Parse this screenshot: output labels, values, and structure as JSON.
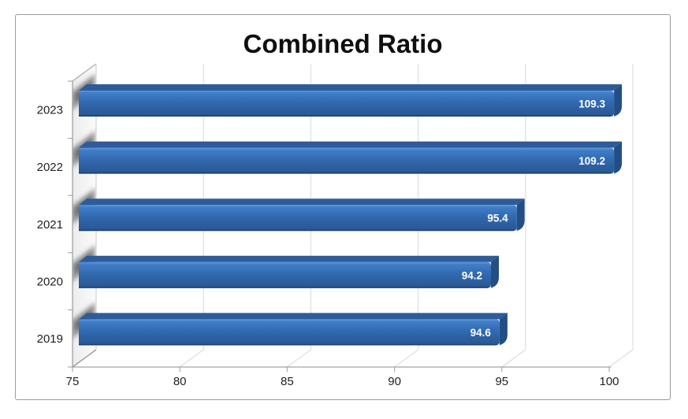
{
  "chart_data": {
    "type": "bar",
    "orientation": "horizontal",
    "style": "3d",
    "title": "Combined Ratio",
    "categories": [
      "2023",
      "2022",
      "2021",
      "2020",
      "2019"
    ],
    "values": [
      109.3,
      109.2,
      95.4,
      94.2,
      94.6
    ],
    "data_labels": [
      "109.3",
      "109.2",
      "95.4",
      "94.2",
      "94.6"
    ],
    "x_ticks": [
      75,
      80,
      85,
      90,
      95,
      100
    ],
    "xlim": [
      75,
      100
    ],
    "grid": true,
    "legend": "none",
    "xlabel": "",
    "ylabel": "",
    "colors": {
      "bar_face_top": "#4484CF",
      "bar_face_mid": "#3269B0",
      "bar_face_bottom": "#285691",
      "bar_top_face": "#2D5C99",
      "bar_side_face": "#234E85",
      "bar_bottom_edge": "#1D4068",
      "bar_highlight": "#5B94DC",
      "data_label": "#FFFFFF",
      "gridline": "#DCDCDC",
      "axis_line": "#A3A3A3",
      "tick_text": "#212121",
      "title_text": "#0F0F0F",
      "wall_edge": "#999999",
      "frame_border": "#9B9B9B"
    }
  }
}
